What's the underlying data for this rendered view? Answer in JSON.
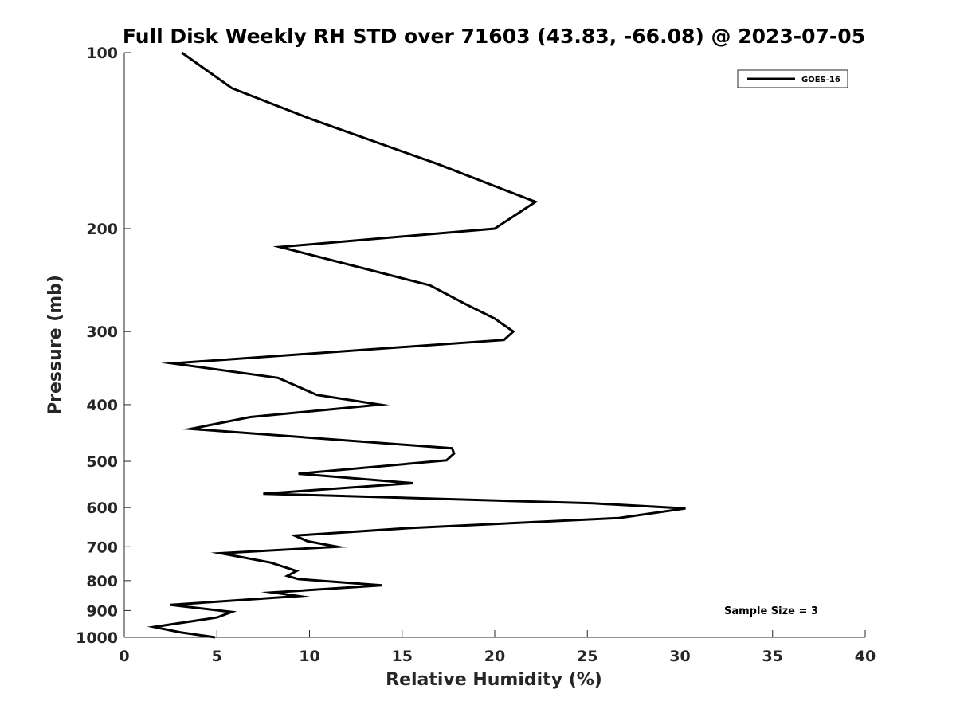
{
  "chart_data": {
    "type": "line",
    "title": "Full Disk Weekly RH STD over 71603 (43.83, -66.08) @ 2023-07-05",
    "xlabel": "Relative Humidity (%)",
    "ylabel": "Pressure (mb)",
    "xlim": [
      0,
      40
    ],
    "ylim": [
      100,
      1000
    ],
    "yscale": "log",
    "y_reversed": true,
    "xticks": [
      0,
      5,
      10,
      15,
      20,
      25,
      30,
      35,
      40
    ],
    "xtick_labels": [
      "0",
      "5",
      "10",
      "15",
      "20",
      "25",
      "30",
      "35",
      "40"
    ],
    "yticks": [
      100,
      200,
      300,
      400,
      500,
      600,
      700,
      800,
      900,
      1000
    ],
    "ytick_labels": [
      "100",
      "200",
      "300",
      "400",
      "500",
      "600",
      "700",
      "800",
      "900",
      "1000"
    ],
    "grid": false,
    "legend_position": "top-right",
    "series": [
      {
        "name": "GOES-16",
        "color": "#000000",
        "x": [
          3.1,
          5.8,
          10.1,
          16.9,
          22.2,
          20.0,
          8.4,
          16.5,
          18.5,
          20.0,
          21.0,
          20.5,
          2.6,
          8.3,
          10.4,
          13.8,
          6.8,
          3.6,
          17.7,
          17.8,
          17.4,
          9.4,
          15.6,
          7.5,
          25.3,
          30.3,
          26.7,
          15.5,
          9.2,
          9.9,
          11.5,
          5.2,
          7.9,
          9.3,
          8.8,
          9.4,
          13.9,
          8.0,
          9.4,
          2.5,
          5.8,
          5.0,
          1.6,
          3.0,
          4.9
        ],
        "y": [
          100,
          115,
          130,
          155,
          180,
          200,
          215,
          250,
          270,
          285,
          300,
          310,
          340,
          360,
          385,
          400,
          420,
          440,
          475,
          485,
          498,
          525,
          545,
          568,
          590,
          602,
          625,
          650,
          670,
          685,
          700,
          718,
          745,
          770,
          785,
          795,
          815,
          838,
          850,
          880,
          905,
          925,
          960,
          980,
          1000
        ]
      }
    ],
    "annotations": [
      "Sample Size = 3"
    ]
  }
}
